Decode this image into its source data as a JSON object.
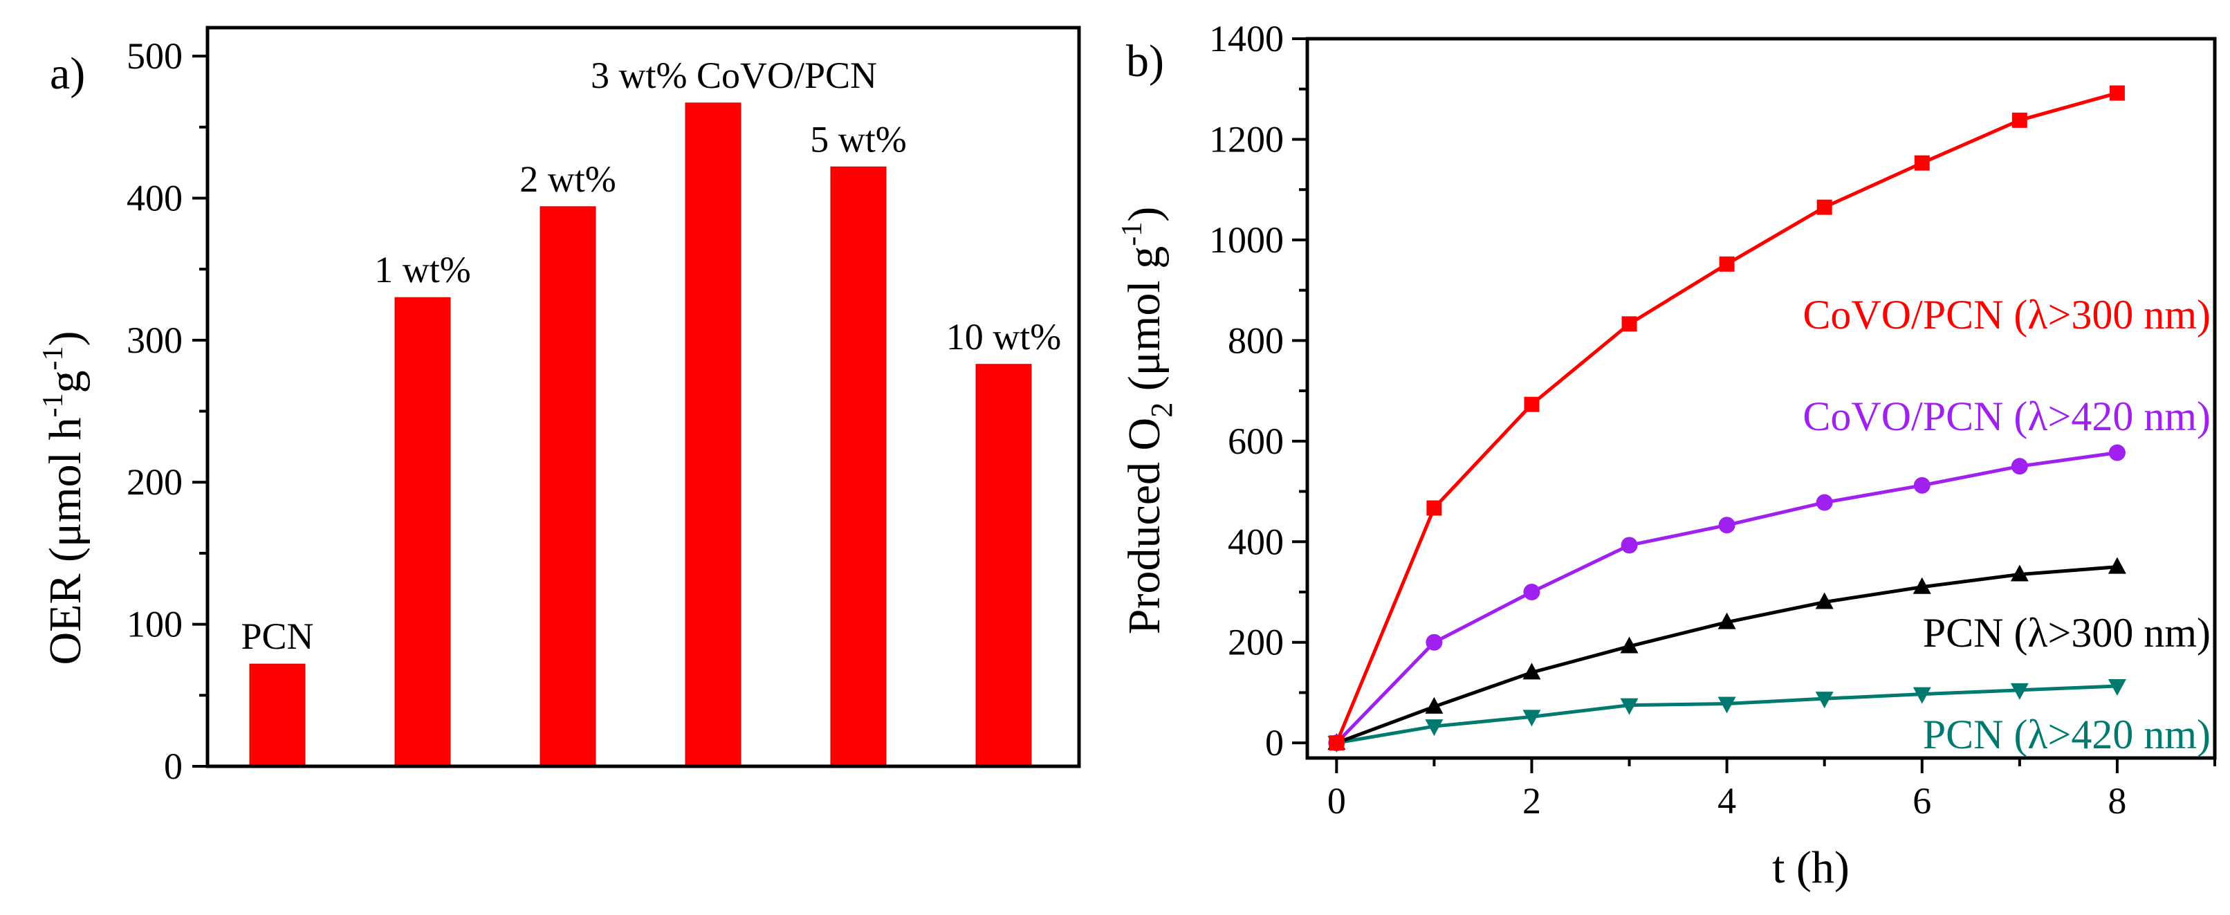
{
  "panel_a": {
    "label": "a)",
    "ylabel_main": "OER (μmol h",
    "ylabel_sup1": "-1",
    "ylabel_mid": "g",
    "ylabel_sup2": "-1",
    "ylabel_end": ")"
  },
  "panel_b": {
    "label": "b)",
    "ylabel_main": "Produced O",
    "ylabel_sub": "2",
    "ylabel_mid": " (μmol g",
    "ylabel_sup": "-1",
    "ylabel_end": ")",
    "xlabel": "t (h)"
  },
  "chart_data": [
    {
      "type": "bar",
      "title": "",
      "xlabel": "",
      "ylabel": "OER (μmol h-1g-1)",
      "categories": [
        "PCN",
        "1 wt%",
        "2 wt%",
        "3 wt% CoVO/PCN",
        "5 wt%",
        "10 wt%"
      ],
      "values": [
        72,
        330,
        394,
        467,
        422,
        283
      ],
      "ylim": [
        0,
        520
      ],
      "yticks": [
        0,
        100,
        200,
        300,
        400,
        500
      ],
      "bar_color": "#ff0000",
      "grid": false
    },
    {
      "type": "line",
      "title": "",
      "xlabel": "t (h)",
      "ylabel": "Produced O2 (μmol g-1)",
      "xlim": [
        -0.3,
        9
      ],
      "ylim": [
        -30,
        1400
      ],
      "xticks": [
        0,
        2,
        4,
        6,
        8
      ],
      "yticks": [
        0,
        200,
        400,
        600,
        800,
        1000,
        1200,
        1400
      ],
      "x": [
        0,
        1,
        2,
        3,
        4,
        5,
        6,
        7,
        8
      ],
      "series": [
        {
          "name": "CoVO/PCN (λ>300 nm)",
          "color": "#ff0000",
          "marker": "square",
          "values": [
            0,
            467,
            673,
            833,
            952,
            1065,
            1153,
            1238,
            1292
          ]
        },
        {
          "name": "CoVO/PCN (λ>420 nm)",
          "color": "#a020f0",
          "marker": "circle",
          "values": [
            0,
            200,
            300,
            393,
            433,
            478,
            512,
            550,
            577
          ]
        },
        {
          "name": "PCN (λ>300 nm)",
          "color": "#000000",
          "marker": "triangle-up",
          "values": [
            0,
            72,
            140,
            192,
            240,
            280,
            310,
            335,
            350
          ]
        },
        {
          "name": "PCN (λ>420 nm)",
          "color": "#007a6e",
          "marker": "triangle-down",
          "values": [
            0,
            33,
            52,
            75,
            78,
            88,
            97,
            105,
            113
          ]
        }
      ],
      "grid": false
    }
  ]
}
